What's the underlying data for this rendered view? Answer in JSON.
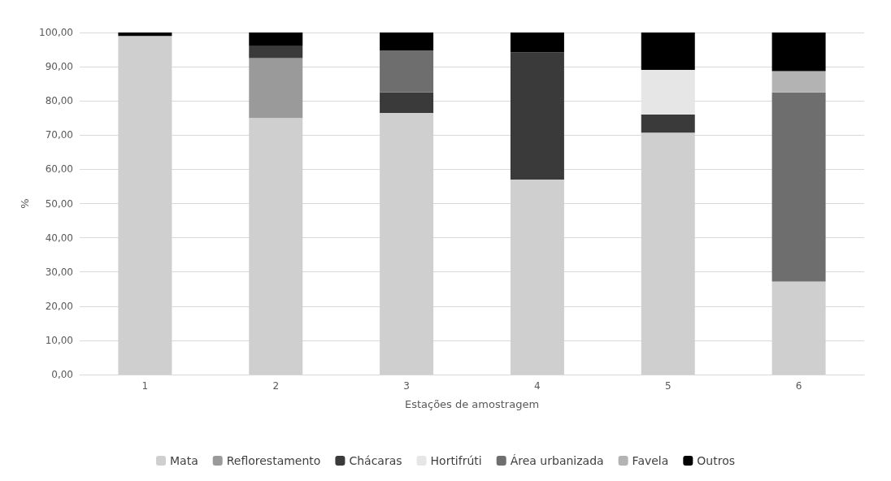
{
  "chart_data": {
    "type": "bar",
    "stacked": true,
    "xlabel": "Estações de amostragem",
    "ylabel": "%",
    "categories": [
      "1",
      "2",
      "3",
      "4",
      "5",
      "6"
    ],
    "series": [
      {
        "name": "Mata",
        "color": "#cfcfcf",
        "values": [
          99,
          75,
          76.5,
          57,
          70.7,
          27.2
        ]
      },
      {
        "name": "Reflorestamento",
        "color": "#9a9a9a",
        "values": [
          0,
          17.5,
          0,
          0,
          0,
          0
        ]
      },
      {
        "name": "Chácaras",
        "color": "#3a3a3a",
        "values": [
          0,
          3.5,
          6,
          37.2,
          5.3,
          0
        ]
      },
      {
        "name": "Hortifrúti",
        "color": "#e6e6e6",
        "values": [
          0,
          0,
          0,
          0,
          13.1,
          0
        ]
      },
      {
        "name": "Área urbanizada",
        "color": "#6e6e6e",
        "values": [
          0,
          0,
          12.2,
          0,
          0,
          55.3
        ]
      },
      {
        "name": "Favela",
        "color": "#b3b3b3",
        "values": [
          0,
          0,
          0,
          0,
          0,
          6.2
        ]
      },
      {
        "name": "Outros",
        "color": "#000000",
        "values": [
          1,
          4,
          5.3,
          5.8,
          10.9,
          11.3
        ]
      }
    ],
    "ylim": [
      0,
      100
    ],
    "yticks": [
      {
        "value": 0,
        "label": "0,00"
      },
      {
        "value": 10,
        "label": "10,00"
      },
      {
        "value": 20,
        "label": "20,00"
      },
      {
        "value": 30,
        "label": "30,00"
      },
      {
        "value": 40,
        "label": "40,00"
      },
      {
        "value": 50,
        "label": "50,00"
      },
      {
        "value": 60,
        "label": "60,00"
      },
      {
        "value": 70,
        "label": "70,00"
      },
      {
        "value": 80,
        "label": "80,00"
      },
      {
        "value": 90,
        "label": "90,00"
      },
      {
        "value": 100,
        "label": "100,00"
      }
    ],
    "grid": "y",
    "legend": "bottom"
  }
}
